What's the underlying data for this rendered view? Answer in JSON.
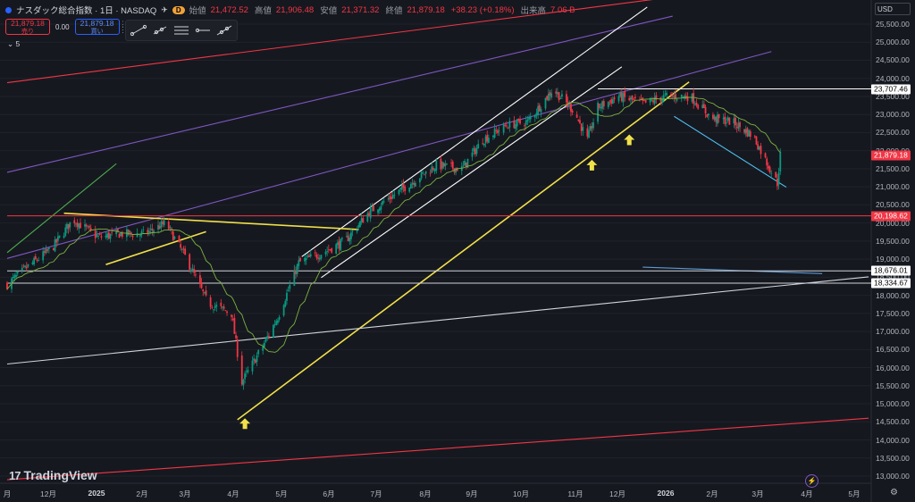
{
  "header": {
    "symbol": "ナスダック総合指数 · 1日 · NASDAQ",
    "badge": "D",
    "open_label": "始値",
    "open_value": "21,472.52",
    "high_label": "高値",
    "high_value": "21,906.48",
    "low_label": "安値",
    "low_value": "21,371.32",
    "close_label": "終値",
    "close_value": "21,879.18",
    "change": "+38.23 (+0.18%)",
    "volume_label": "出来高",
    "volume_value": "7.06 B"
  },
  "trade": {
    "sell_price": "21,879.18",
    "sell_label": "売り",
    "spread": "0.00",
    "buy_price": "21,879.18",
    "buy_label": "買い"
  },
  "layers": {
    "count": "5"
  },
  "currency": "USD",
  "colors": {
    "up": "#089981",
    "down": "#f23645",
    "background": "#16181f"
  },
  "price_tags": [
    {
      "label": "23,707.46",
      "value": 23707.46,
      "bg": "#ffffff",
      "fg": "#000000"
    },
    {
      "label": "21,879.18",
      "value": 21879.18,
      "bg": "#f23645",
      "fg": "#ffffff"
    },
    {
      "label": "20,198.62",
      "value": 20198.62,
      "bg": "#f23645",
      "fg": "#ffffff"
    },
    {
      "label": "18,676.01",
      "value": 18676.01,
      "bg": "#ffffff",
      "fg": "#000000"
    },
    {
      "label": "18,334.67",
      "value": 18334.67,
      "bg": "#ffffff",
      "fg": "#000000"
    }
  ],
  "chart_data": {
    "type": "candlestick",
    "ylim": [
      12700,
      25700
    ],
    "y_ticks": [
      13000,
      13500,
      14000,
      14500,
      15000,
      15500,
      16000,
      16500,
      17000,
      17500,
      18000,
      18500,
      19000,
      19500,
      20000,
      20500,
      21000,
      21500,
      22000,
      22500,
      23000,
      23500,
      24000,
      24500,
      25000,
      25500
    ],
    "y_tick_labels": [
      "13,000.00",
      "13,500.00",
      "14,000.00",
      "14,500.00",
      "15,000.00",
      "15,500.00",
      "16,000.00",
      "16,500.00",
      "17,000.00",
      "17,500.00",
      "18,000.00",
      "18,500.00",
      "19,000.00",
      "19,500.00",
      "20,000.00",
      "20,500.00",
      "21,000.00",
      "21,500.00",
      "22,000.00",
      "22,500.00",
      "23,000.00",
      "23,500.00",
      "24,000.00",
      "24,500.00",
      "25,000.00",
      "25,500.00"
    ],
    "x_ticks": [
      "月",
      "12月",
      "2025",
      "2月",
      "3月",
      "4月",
      "5月",
      "6月",
      "7月",
      "8月",
      "9月",
      "10月",
      "11月",
      "12月",
      "2026",
      "2月",
      "3月",
      "4月",
      "5月"
    ],
    "x_start": "2024-11-01",
    "x_end": "2026-05-31",
    "series": [
      {
        "name": "NASDAQ",
        "values": [
          [
            "2024-11-01",
            18300
          ],
          [
            "2024-11-15",
            18800
          ],
          [
            "2024-12-01",
            19300
          ],
          [
            "2024-12-15",
            20100
          ],
          [
            "2025-01-01",
            19600
          ],
          [
            "2025-01-15",
            19700
          ],
          [
            "2025-02-01",
            19700
          ],
          [
            "2025-02-15",
            20000
          ],
          [
            "2025-03-01",
            19000
          ],
          [
            "2025-03-15",
            17800
          ],
          [
            "2025-03-31",
            17500
          ],
          [
            "2025-04-07",
            15600
          ],
          [
            "2025-04-21",
            16600
          ],
          [
            "2025-05-01",
            17400
          ],
          [
            "2025-05-15",
            18900
          ],
          [
            "2025-06-01",
            19200
          ],
          [
            "2025-06-15",
            19500
          ],
          [
            "2025-07-01",
            20300
          ],
          [
            "2025-07-15",
            20700
          ],
          [
            "2025-08-01",
            21200
          ],
          [
            "2025-08-15",
            21600
          ],
          [
            "2025-09-01",
            21500
          ],
          [
            "2025-09-15",
            22300
          ],
          [
            "2025-10-01",
            22700
          ],
          [
            "2025-10-15",
            22800
          ],
          [
            "2025-11-01",
            23700
          ],
          [
            "2025-11-15",
            23100
          ],
          [
            "2025-11-24",
            22300
          ],
          [
            "2025-12-01",
            23200
          ],
          [
            "2025-12-15",
            23500
          ],
          [
            "2026-01-01",
            23300
          ],
          [
            "2026-01-15",
            23500
          ],
          [
            "2026-02-01",
            23500
          ],
          [
            "2026-02-15",
            22900
          ],
          [
            "2026-03-01",
            22800
          ],
          [
            "2026-03-15",
            22400
          ],
          [
            "2026-03-31",
            21100
          ],
          [
            "2026-04-02",
            21879.18
          ]
        ]
      }
    ],
    "trendlines": [
      {
        "color": "#f23645",
        "points": [
          [
            "2024-11-01",
            23880
          ],
          [
            "2026-01-31",
            26310
          ]
        ]
      },
      {
        "color": "#7e57c2",
        "points": [
          [
            "2024-11-01",
            21400
          ],
          [
            "2026-01-20",
            25720
          ]
        ]
      },
      {
        "color": "#7e57c2",
        "points": [
          [
            "2024-11-01",
            19020
          ],
          [
            "2026-03-27",
            24740
          ]
        ]
      },
      {
        "color": "#ffffff",
        "points": [
          [
            "2025-05-17",
            19070
          ],
          [
            "2026-01-03",
            25970
          ]
        ]
      },
      {
        "color": "#ffffff",
        "points": [
          [
            "2025-05-30",
            18490
          ],
          [
            "2025-12-17",
            24320
          ]
        ]
      },
      {
        "color": "#f0e04a",
        "points": [
          [
            "2025-04-04",
            14560
          ],
          [
            "2026-01-31",
            23900
          ]
        ]
      },
      {
        "color": "#f0e04a",
        "points": [
          [
            "2024-12-09",
            20270
          ],
          [
            "2025-06-24",
            19820
          ]
        ]
      },
      {
        "color": "#f0e04a",
        "points": [
          [
            "2025-01-06",
            18850
          ],
          [
            "2025-03-14",
            19760
          ]
        ]
      },
      {
        "color": "#4caf50",
        "points": [
          [
            "2024-11-01",
            19180
          ],
          [
            "2025-01-13",
            21640
          ]
        ]
      },
      {
        "color": "#5b9bd5",
        "points": [
          [
            "2025-12-31",
            18780
          ],
          [
            "2026-04-30",
            18600
          ]
        ]
      },
      {
        "color": "#d1d4dc",
        "points": [
          [
            "2024-11-01",
            16100
          ],
          [
            "2026-05-31",
            18510
          ]
        ]
      },
      {
        "color": "#f23645",
        "points": [
          [
            "2024-11-01",
            12900
          ],
          [
            "2026-05-31",
            14600
          ]
        ]
      },
      {
        "color": "#4fc3f7",
        "points": [
          [
            "2026-01-21",
            22950
          ],
          [
            "2026-04-06",
            20990
          ]
        ]
      }
    ],
    "horizontal_lines": [
      {
        "color": "#ffffff",
        "value": 23707.46,
        "from": "2025-12-01"
      },
      {
        "color": "#f23645",
        "value": 20198.62,
        "from": "2024-11-01"
      },
      {
        "color": "#d1d4dc",
        "value": 18676.01,
        "from": "2024-11-01"
      },
      {
        "color": "#d1d4dc",
        "value": 18334.67,
        "from": "2024-11-01"
      }
    ],
    "markers": [
      {
        "type": "arrow-up",
        "color": "#f0e04a",
        "date": "2025-04-09",
        "value": 14450
      },
      {
        "type": "arrow-up",
        "color": "#f0e04a",
        "date": "2025-11-27",
        "value": 21600
      },
      {
        "type": "arrow-up",
        "color": "#f0e04a",
        "date": "2025-12-22",
        "value": 22300
      }
    ]
  }
}
